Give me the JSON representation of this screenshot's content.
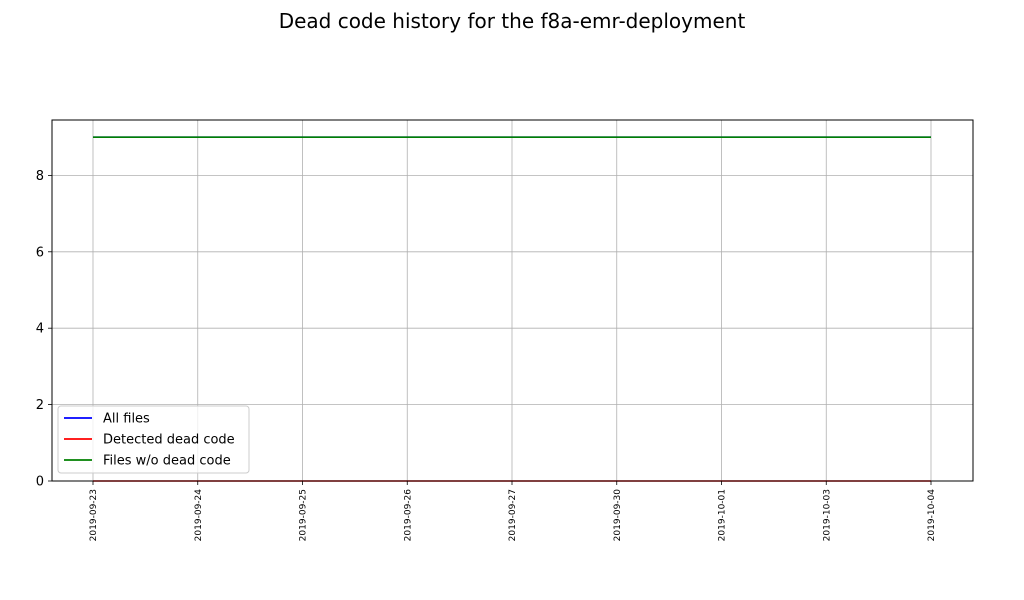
{
  "chart_data": {
    "type": "line",
    "title": "Dead code history for the f8a-emr-deployment",
    "xlabel": "",
    "ylabel": "",
    "x": [
      "2019-09-23",
      "2019-09-24",
      "2019-09-25",
      "2019-09-26",
      "2019-09-27",
      "2019-09-30",
      "2019-10-01",
      "2019-10-03",
      "2019-10-04"
    ],
    "ylim": [
      0,
      9.45
    ],
    "yticks": [
      0,
      2,
      4,
      6,
      8
    ],
    "grid": true,
    "legend_position": "lower-left",
    "series": [
      {
        "name": "All files",
        "color": "#0000ff",
        "values": [
          9,
          9,
          9,
          9,
          9,
          9,
          9,
          9,
          9
        ]
      },
      {
        "name": "Detected dead code",
        "color": "#ff0000",
        "values": [
          0,
          0,
          0,
          0,
          0,
          0,
          0,
          0,
          0
        ]
      },
      {
        "name": "Files w/o dead code",
        "color": "#008000",
        "values": [
          9,
          9,
          9,
          9,
          9,
          9,
          9,
          9,
          9
        ]
      }
    ]
  }
}
